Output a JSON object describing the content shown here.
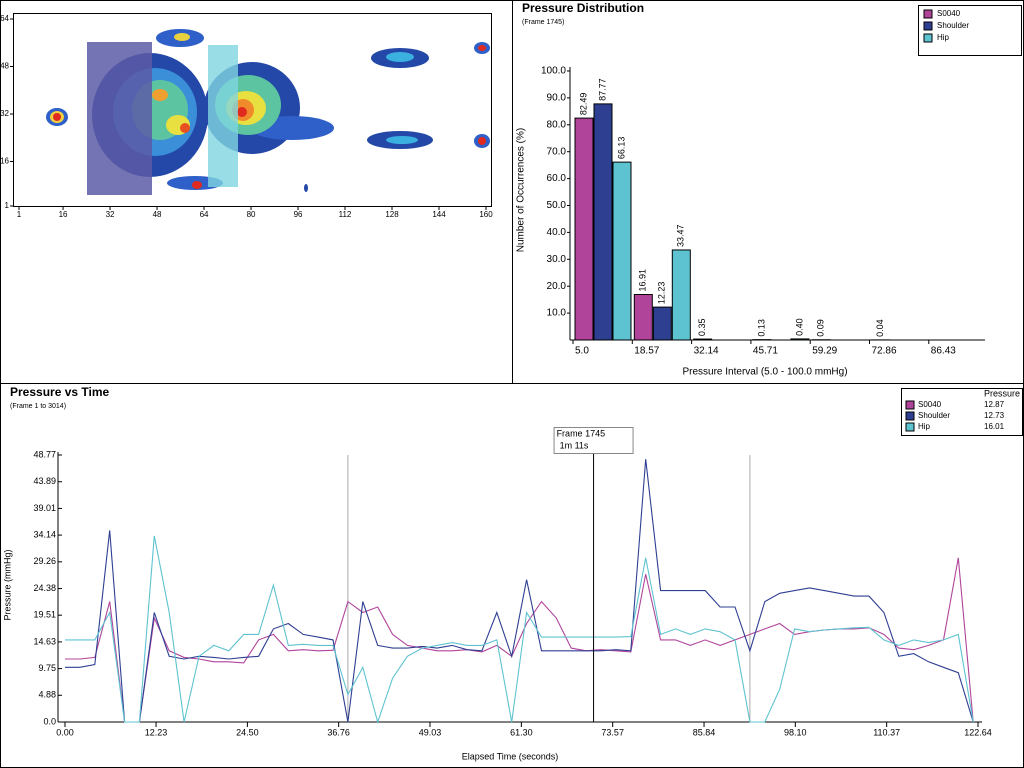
{
  "chart_data": [
    {
      "type": "heatmap",
      "xlim": [
        1,
        160
      ],
      "ylim": [
        1,
        64
      ],
      "xticks": [
        1,
        16,
        32,
        48,
        64,
        80,
        96,
        112,
        128,
        144,
        160
      ],
      "yticks": [
        1,
        16,
        32,
        48,
        64
      ]
    },
    {
      "type": "bar",
      "title": "Pressure Distribution",
      "subtitle": "(Frame 1745)",
      "y_label": "Number of Occurrences (%)",
      "x_label": "Pressure Interval (5.0 - 100.0 mmHg)",
      "categories": [
        "5.0",
        "18.57",
        "32.14",
        "45.71",
        "59.29",
        "72.86",
        "86.43"
      ],
      "series": [
        {
          "name": "S0040",
          "color": "#b0449a",
          "values": [
            82.49,
            16.91,
            0.35,
            0.13,
            0.09,
            0.04,
            null
          ]
        },
        {
          "name": "Shoulder",
          "color": "#2e3f92",
          "values": [
            87.77,
            12.23,
            null,
            null,
            null,
            null,
            null
          ]
        },
        {
          "name": "Hip",
          "color": "#5ec3d0",
          "values": [
            66.13,
            33.47,
            null,
            0.4,
            null,
            null,
            null
          ],
          "value_labels": [
            "66.13",
            "33.47",
            null,
            "0.40",
            null,
            null,
            null
          ]
        }
      ],
      "ylim": [
        0,
        100
      ],
      "yticks": [
        {
          "value": 10,
          "label": "10.0"
        },
        {
          "value": 20,
          "label": "20.0"
        },
        {
          "value": 30,
          "label": "30.0"
        },
        {
          "value": 40,
          "label": "40.0"
        },
        {
          "value": 50,
          "label": "50.0"
        },
        {
          "value": 60,
          "label": "60.0"
        },
        {
          "value": 70,
          "label": "70.0"
        },
        {
          "value": 80,
          "label": "80.0"
        },
        {
          "value": 90,
          "label": "90.0"
        },
        {
          "value": 100,
          "label": "100.0"
        }
      ],
      "legend": "top-right"
    },
    {
      "type": "line",
      "title": "Pressure vs Time",
      "subtitle": "(Frame 1 to 3014)",
      "y_label": "Pressure (mmHg)",
      "x_label": "Elapsed Time (seconds)",
      "legend_title": "Pressure",
      "legend": "top-right",
      "cursor": {
        "x": 71,
        "label": "Frame 1745",
        "time_label": "1m 11s"
      },
      "reference_x": [
        38,
        92
      ],
      "x": [
        0,
        2,
        4,
        6,
        8,
        10,
        12,
        14,
        16,
        18,
        20,
        22,
        24,
        26,
        28,
        30,
        32,
        34,
        36,
        38,
        40,
        42,
        44,
        46,
        48,
        50,
        52,
        54,
        56,
        58,
        60,
        62,
        64,
        66,
        68,
        70,
        72,
        74,
        76,
        78,
        80,
        82,
        84,
        86,
        88,
        90,
        92,
        94,
        96,
        98,
        100,
        102,
        104,
        106,
        108,
        110,
        112,
        114,
        116,
        118,
        120,
        122
      ],
      "series": [
        {
          "name": "S0040",
          "color": "#b0449a",
          "legend_value": 12.87,
          "values": [
            11.5,
            11.5,
            11.8,
            22,
            0,
            0,
            19,
            13,
            11.8,
            11.5,
            11,
            11,
            10.8,
            15,
            16,
            13,
            13.2,
            13,
            13.1,
            22,
            20,
            21,
            16,
            14,
            13.5,
            13,
            13,
            13.2,
            12.8,
            14,
            12,
            18,
            22,
            19,
            13.5,
            13,
            13.2,
            13,
            12.8,
            27,
            15,
            15,
            14,
            15,
            14,
            15,
            16,
            17,
            18,
            16,
            16.5,
            16.8,
            17,
            17,
            17.2,
            16,
            13.5,
            13.2,
            14,
            15,
            30,
            0
          ]
        },
        {
          "name": "Shoulder",
          "color": "#2e3f92",
          "legend_value": 12.73,
          "values": [
            10,
            10,
            10.5,
            35,
            0,
            0,
            20,
            12,
            11.5,
            12,
            11.8,
            11.5,
            11.8,
            12,
            17,
            18,
            16,
            15.5,
            15,
            0,
            22,
            14,
            13.5,
            13.5,
            13.8,
            13.5,
            14,
            13.2,
            13,
            20,
            12,
            26,
            13,
            13,
            13,
            13,
            13,
            13.2,
            13,
            48,
            24,
            24,
            24,
            24,
            21,
            21,
            13,
            22,
            23.5,
            24,
            24.5,
            24,
            23.5,
            23,
            23,
            20,
            12,
            12.5,
            11,
            10,
            9,
            0
          ]
        },
        {
          "name": "Hip",
          "color": "#5ec3d0",
          "legend_value": 16.01,
          "values": [
            15,
            15,
            15,
            20,
            0,
            0,
            34,
            20,
            0,
            12,
            14,
            13,
            16,
            16,
            25,
            14,
            14.2,
            14,
            14,
            5,
            10,
            0,
            8,
            12,
            13.5,
            14,
            14.5,
            14,
            14,
            15,
            0,
            20,
            15.5,
            15.5,
            15.5,
            15.5,
            15.5,
            15.5,
            15.6,
            30,
            16,
            17,
            16,
            17,
            16.5,
            15,
            0,
            0,
            6,
            17,
            16.5,
            16.8,
            17,
            17.2,
            17.3,
            15,
            14,
            15,
            14.5,
            15,
            16,
            0
          ]
        }
      ],
      "xlim": [
        0,
        122.64
      ],
      "xticks": [
        {
          "value": 0,
          "label": "0.00"
        },
        12.23,
        {
          "value": 24.5,
          "label": "24.50"
        },
        36.76,
        49.03,
        {
          "value": 61.3,
          "label": "61.30"
        },
        73.57,
        85.84,
        {
          "value": 98.1,
          "label": "98.10"
        },
        110.37,
        122.64
      ],
      "ylim": [
        0,
        48.77
      ],
      "yticks": [
        {
          "value": 0,
          "label": "0.0"
        },
        4.88,
        9.75,
        14.63,
        19.51,
        24.38,
        29.26,
        34.14,
        39.01,
        43.89,
        48.77
      ]
    }
  ]
}
